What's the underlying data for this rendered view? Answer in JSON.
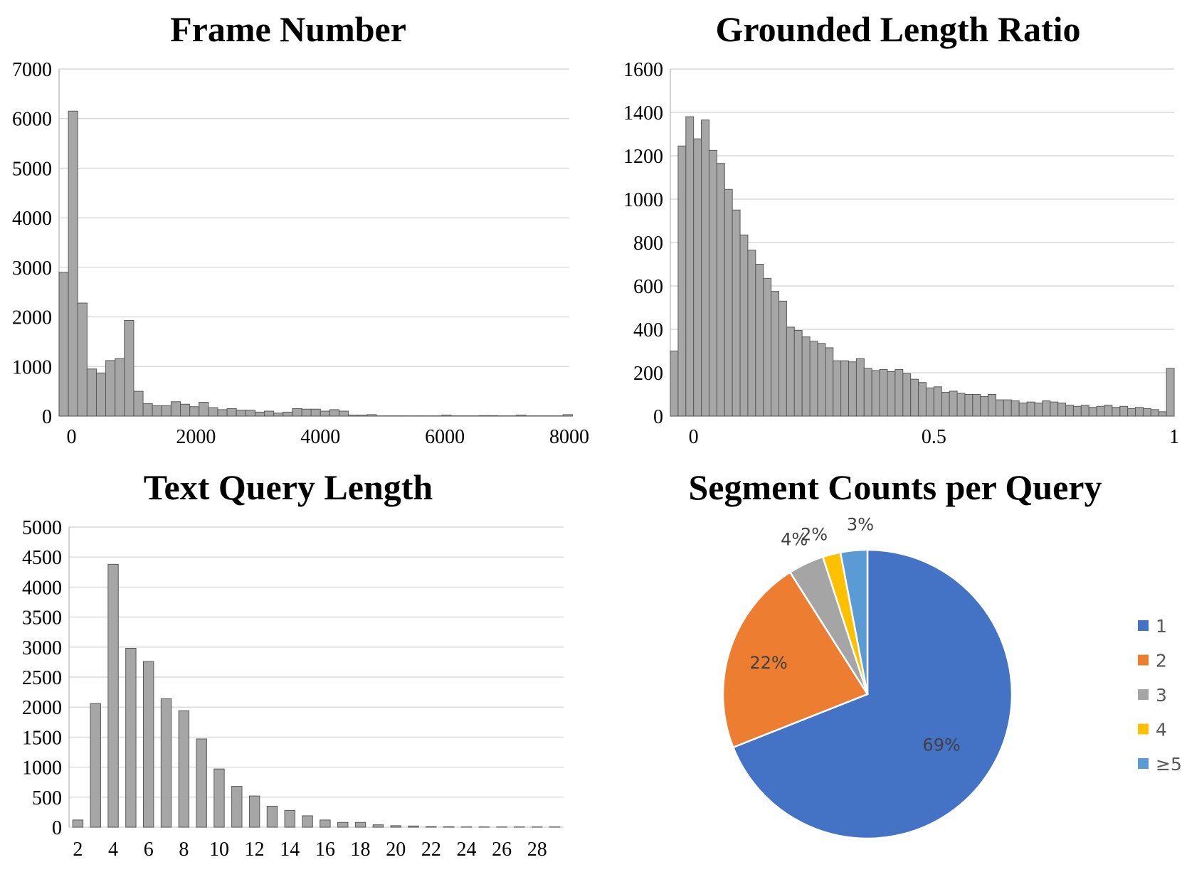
{
  "chart_data": [
    {
      "type": "bar",
      "title": "Frame Number",
      "xlabel": "",
      "ylabel": "",
      "ylim": [
        0,
        7000
      ],
      "xlim": [
        -200,
        8000
      ],
      "bin_width": 150,
      "x_ticks": [
        0,
        2000,
        4000,
        6000,
        8000
      ],
      "y_ticks": [
        0,
        1000,
        2000,
        3000,
        4000,
        5000,
        6000,
        7000
      ],
      "bin_start": [
        -200,
        -50,
        100,
        250,
        400,
        550,
        700,
        850,
        1000,
        1150,
        1300,
        1450,
        1600,
        1750,
        1900,
        2050,
        2200,
        2350,
        2500,
        2650,
        2800,
        2950,
        3100,
        3250,
        3400,
        3550,
        3700,
        3850,
        4000,
        4150,
        4300,
        4450,
        4600,
        4750,
        4900,
        5050,
        5200,
        5350,
        5500,
        5650,
        5800,
        5950,
        6100,
        6250,
        6400,
        6550,
        6700,
        6850,
        7000,
        7150,
        7300,
        7450,
        7600,
        7750,
        7900
      ],
      "values": [
        2900,
        6150,
        2280,
        950,
        870,
        1120,
        1160,
        1930,
        500,
        250,
        210,
        210,
        290,
        240,
        190,
        280,
        170,
        130,
        150,
        120,
        120,
        80,
        100,
        60,
        80,
        150,
        140,
        140,
        100,
        130,
        100,
        20,
        20,
        30,
        5,
        5,
        5,
        5,
        5,
        5,
        5,
        20,
        5,
        5,
        5,
        10,
        10,
        5,
        5,
        20,
        5,
        5,
        5,
        5,
        30
      ],
      "grid": true
    },
    {
      "type": "bar",
      "title": "Grounded Length Ratio",
      "xlabel": "",
      "ylabel": "",
      "ylim": [
        0,
        1600
      ],
      "xlim": [
        -0.0484,
        1.0
      ],
      "bin_width": 0.01613,
      "x_ticks": [
        0,
        0.5,
        1
      ],
      "y_ticks": [
        0,
        200,
        400,
        600,
        800,
        1000,
        1200,
        1400,
        1600
      ],
      "values": [
        300,
        1245,
        1380,
        1278,
        1365,
        1225,
        1165,
        1045,
        950,
        835,
        765,
        700,
        635,
        575,
        530,
        410,
        395,
        365,
        345,
        335,
        315,
        255,
        255,
        250,
        265,
        220,
        210,
        215,
        205,
        215,
        195,
        170,
        155,
        130,
        135,
        110,
        115,
        105,
        100,
        100,
        90,
        100,
        75,
        75,
        70,
        60,
        65,
        60,
        70,
        65,
        60,
        50,
        45,
        50,
        40,
        45,
        50,
        40,
        45,
        35,
        40,
        35,
        30,
        20,
        220
      ],
      "grid": true
    },
    {
      "type": "bar",
      "title": "Text Query Length",
      "xlabel": "",
      "ylabel": "",
      "ylim": [
        0,
        5000
      ],
      "categories": [
        "2",
        "3",
        "4",
        "5",
        "6",
        "7",
        "8",
        "9",
        "10",
        "11",
        "12",
        "13",
        "14",
        "15",
        "16",
        "17",
        "18",
        "19",
        "20",
        "21",
        "22",
        "23",
        "24",
        "25",
        "26",
        "27",
        "28",
        "29"
      ],
      "x_tick_labels": [
        "2",
        "4",
        "6",
        "8",
        "10",
        "12",
        "14",
        "16",
        "18",
        "20",
        "22",
        "24",
        "26",
        "28"
      ],
      "y_ticks": [
        0,
        500,
        1000,
        1500,
        2000,
        2500,
        3000,
        3500,
        4000,
        4500,
        5000
      ],
      "values": [
        120,
        2060,
        4380,
        2980,
        2760,
        2140,
        1940,
        1470,
        970,
        680,
        520,
        350,
        280,
        190,
        120,
        80,
        80,
        40,
        25,
        20,
        10,
        8,
        5,
        5,
        5,
        5,
        5,
        5
      ],
      "grid": true
    },
    {
      "type": "pie",
      "title": "Segment Counts per Query",
      "labels": [
        "1",
        "2",
        "3",
        "4",
        "≥5"
      ],
      "values": [
        69,
        22,
        4,
        2,
        3
      ],
      "data_labels": [
        "69%",
        "22%",
        "4%",
        "2%",
        "3%"
      ],
      "colors": [
        "#4472c4",
        "#ed7d31",
        "#a5a5a5",
        "#ffc000",
        "#5b9bd5"
      ],
      "legend": "right"
    }
  ]
}
